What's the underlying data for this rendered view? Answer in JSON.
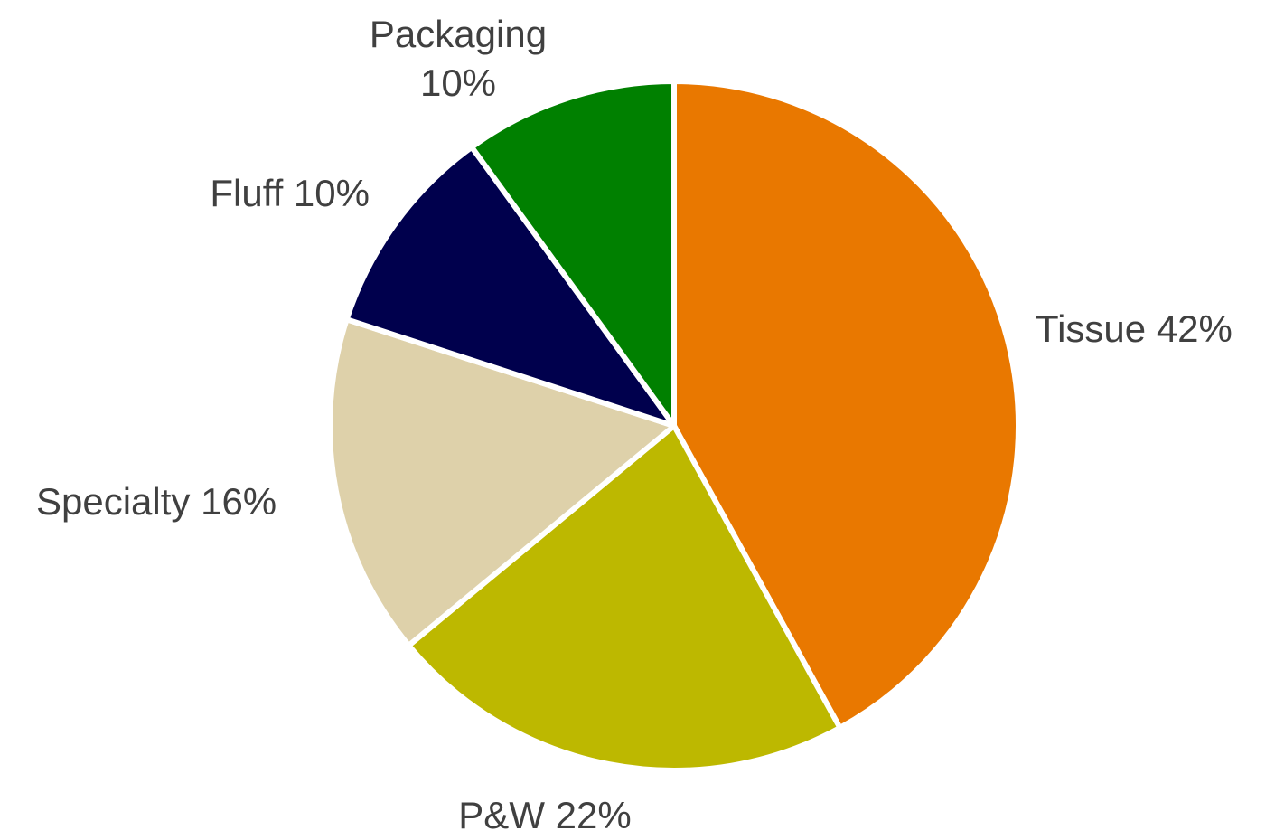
{
  "chart_data": {
    "type": "pie",
    "title": "",
    "slices": [
      {
        "label": "Tissue",
        "value": 42,
        "color": "#E97800"
      },
      {
        "label": "P&W",
        "value": 22,
        "color": "#BDB800"
      },
      {
        "label": "Specialty",
        "value": 16,
        "color": "#DED1AA"
      },
      {
        "label": "Fluff",
        "value": 10,
        "color": "#00004D"
      },
      {
        "label": "Packaging",
        "value": 10,
        "color": "#008000"
      }
    ],
    "data_labels": [
      {
        "lines": [
          "Tissue 42%"
        ]
      },
      {
        "lines": [
          "P&W 22%"
        ]
      },
      {
        "lines": [
          "Specialty 16%"
        ]
      },
      {
        "lines": [
          "Fluff 10%"
        ]
      },
      {
        "lines": [
          "Packaging",
          "10%"
        ]
      }
    ],
    "start_angle": "12 o'clock",
    "direction": "clockwise",
    "legend": "none"
  }
}
